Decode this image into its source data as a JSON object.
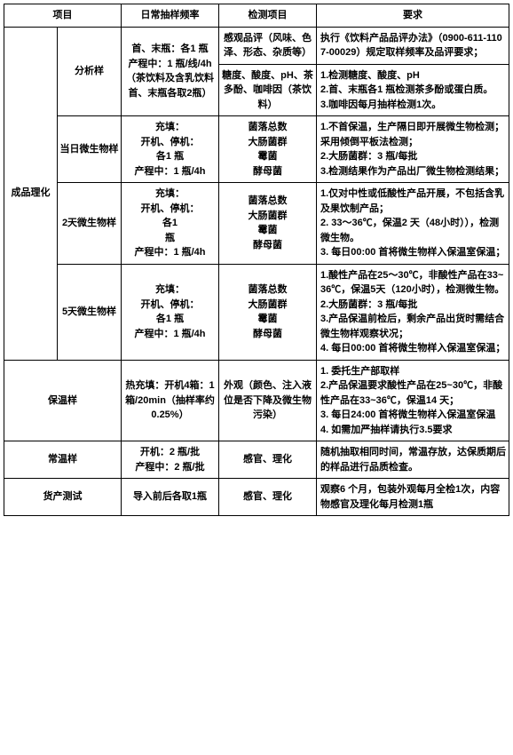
{
  "header": {
    "c1": "项目",
    "c3": "日常抽样频率",
    "c4": "检测项目",
    "c5": "要求"
  },
  "r1": {
    "c1": "成品理化",
    "c2": "分析样",
    "c3": "首、末瓶：各1 瓶\n产程中：1 瓶/线/4h\n（茶饮料及含乳饮料首、末瓶各取2瓶）",
    "c4a": "感观品评（风味、色泽、形态、杂质等）",
    "c5a": "执行《饮料产品品评办法》（0900-611-1107-00029）规定取样频率及品评要求；",
    "c4b": "糖度、酸度、pH、茶多酚、咖啡因（茶饮料）",
    "c5b": "1.检测糖度、酸度、pH\n2.首、末瓶各1 瓶检测茶多酚或蛋白质。\n3.咖啡因每月抽样检测1次。"
  },
  "r2": {
    "c2": "当日微生物样",
    "c3": "充填：\n开机、停机：\n各1 瓶\n产程中：1 瓶/4h",
    "c4": "菌落总数\n大肠菌群\n霉菌\n酵母菌",
    "c5": "1.不首保温，生产隔日即开展微生物检测；采用倾倒平板法检测；\n2.大肠菌群：3 瓶/每批\n3.检测结果作为产品出厂微生物检测结果；"
  },
  "r3": {
    "c2": "2天微生物样",
    "c3": "充填：\n开机、停机：\n各1\n瓶\n产程中：1 瓶/4h",
    "c4": "菌落总数\n大肠菌群\n霉菌\n酵母菌",
    "c5": "1.仅对中性或低酸性产品开展，不包括含乳及果饮制产品；\n2. 33～36℃，保温2 天（48小时）），检测微生物。\n3. 每日00:00 首将微生物样入保温室保温；"
  },
  "r4": {
    "c2": "5天微生物样",
    "c3": "充填：\n开机、停机：\n各1 瓶\n产程中：1 瓶/4h",
    "c4": "菌落总数\n大肠菌群\n霉菌\n酵母菌",
    "c5": "1.酸性产品在25～30℃，非酸性产品在33~36℃，保温5天（120小时），检测微生物。\n2.大肠菌群：3 瓶/每批\n3.产品保温前检后，剩余产品出货时需结合微生物样观察状况；\n4. 每日00:00 首将微生物样入保温室保温；"
  },
  "r5": {
    "c1": "保温样",
    "c3": "热充填：开机4箱：1 箱/20min（抽样率约0.25%）",
    "c4": "外观（颜色、注入液位是否下降及微生物污染）",
    "c5": "1. 委托生产部取样\n2.产品保温要求酸性产品在25~30℃，非酸性产品在33~36℃，保温14 天；\n3. 每日24:00 首将微生物样入保温室保温\n4. 如需加严抽样请执行3.5要求"
  },
  "r6": {
    "c1": "常温样",
    "c3": "开机：2 瓶/批\n产程中：2 瓶/批",
    "c4": "感官、理化",
    "c5": "随机抽取相同时间，常温存放，达保质期后的样品进行品质检查。"
  },
  "r7": {
    "c1": "货产测试",
    "c3": "导入前后各取1瓶",
    "c4": "感官、理化",
    "c5": "观察6 个月，包装外观每月全检1次，内容物感官及理化每月检测1瓶"
  }
}
